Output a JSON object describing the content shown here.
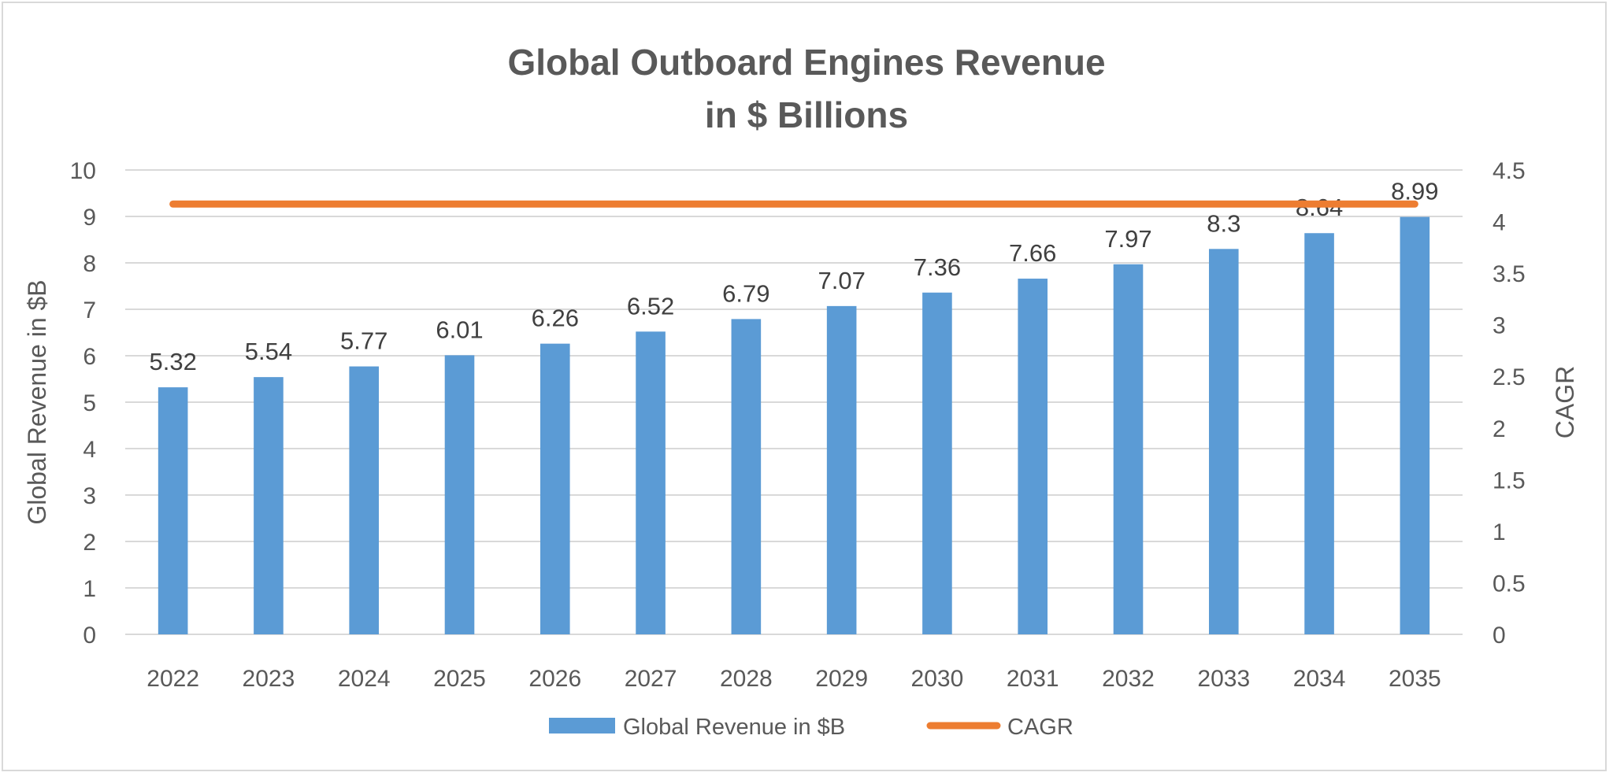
{
  "chart_data": {
    "type": "bar",
    "title": [
      "Global Outboard Engines Revenue",
      "in $ Billions"
    ],
    "categories": [
      "2022",
      "2023",
      "2024",
      "2025",
      "2026",
      "2027",
      "2028",
      "2029",
      "2030",
      "2031",
      "2032",
      "2033",
      "2034",
      "2035"
    ],
    "series": [
      {
        "name": "Global Revenue in $B",
        "type": "bar",
        "axis": "left",
        "color": "#5b9bd5",
        "values": [
          5.32,
          5.54,
          5.77,
          6.01,
          6.26,
          6.52,
          6.79,
          7.07,
          7.36,
          7.66,
          7.97,
          8.3,
          8.64,
          8.99
        ],
        "labels": [
          "5.32",
          "5.54",
          "5.77",
          "6.01",
          "6.26",
          "6.52",
          "6.79",
          "7.07",
          "7.36",
          "7.66",
          "7.97",
          "8.3",
          "8.64",
          "8.99"
        ]
      },
      {
        "name": "CAGR",
        "type": "line",
        "axis": "right",
        "color": "#ed7d31",
        "values": [
          4.17,
          4.17,
          4.17,
          4.17,
          4.17,
          4.17,
          4.17,
          4.17,
          4.17,
          4.17,
          4.17,
          4.17,
          4.17,
          4.17
        ]
      }
    ],
    "ylabel": "Global Revenue in $B",
    "y2label": "CAGR",
    "ylim": [
      0,
      10
    ],
    "y2lim": [
      0,
      4.5
    ],
    "yticks": [
      "0",
      "1",
      "2",
      "3",
      "4",
      "5",
      "6",
      "7",
      "8",
      "9",
      "10"
    ],
    "y2ticks": [
      "0",
      "0.5",
      "1",
      "1.5",
      "2",
      "2.5",
      "3",
      "3.5",
      "4",
      "4.5"
    ],
    "grid": true,
    "legend": "bottom"
  }
}
